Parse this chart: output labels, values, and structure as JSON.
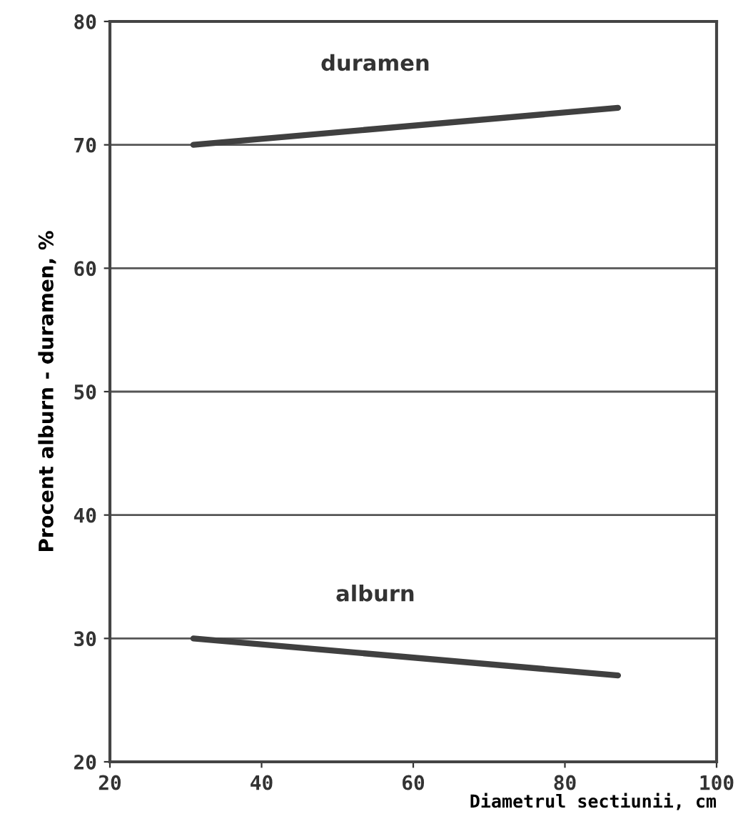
{
  "chart_data": {
    "type": "line",
    "xlabel": "Diametrul sectiunii, cm",
    "ylabel": "Procent alburn - duramen, %",
    "xlim": [
      20,
      100
    ],
    "xticks": [
      20,
      40,
      60,
      80,
      100
    ],
    "ylim": [
      20,
      80
    ],
    "yticks": [
      20,
      30,
      40,
      50,
      60,
      70,
      80
    ],
    "grid": "y",
    "line_style": "solid",
    "x": [
      31,
      87
    ],
    "series": [
      {
        "name": "duramen",
        "color": "#404040",
        "values": [
          70,
          73
        ]
      },
      {
        "name": "alburn",
        "color": "#404040",
        "values": [
          30,
          27
        ]
      }
    ]
  }
}
